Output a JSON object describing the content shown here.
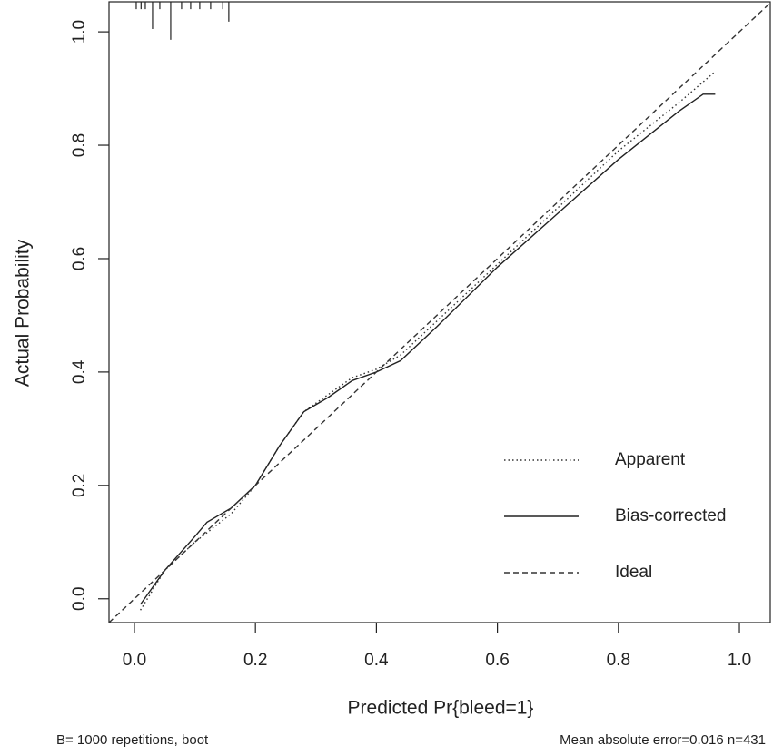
{
  "chart_data": {
    "type": "line",
    "xlabel": "Predicted Pr{bleed=1}",
    "ylabel": "Actual Probability",
    "footnote_left": "B= 1000 repetitions, boot",
    "footnote_right": "Mean absolute error=0.016 n=431",
    "xlim": [
      -0.042,
      1.051
    ],
    "ylim": [
      -0.042,
      1.053
    ],
    "xticks": [
      {
        "value": 0,
        "label": "0.0"
      },
      0.2,
      0.4,
      0.6,
      0.8,
      {
        "value": 1,
        "label": "1.0"
      }
    ],
    "yticks": [
      {
        "value": 0,
        "label": "0.0"
      },
      0.2,
      0.4,
      0.6,
      0.8,
      {
        "value": 1,
        "label": "1.0"
      }
    ],
    "legend": "right",
    "rug": {
      "x": [
        0.003,
        0.011,
        0.018,
        0.03,
        0.042,
        0.06,
        0.078,
        0.093,
        0.108,
        0.126,
        0.146,
        0.156
      ],
      "values": [
        0.013,
        0.013,
        0.013,
        0.048,
        0.013,
        0.067,
        0.013,
        0.013,
        0.013,
        0.013,
        0.013,
        0.035
      ]
    },
    "series": [
      {
        "name": "Apparent",
        "color": "#333",
        "dash": "1.5 3",
        "x": [
          0.01,
          0.05,
          0.1,
          0.16,
          0.2,
          0.24,
          0.28,
          0.36,
          0.4,
          0.44,
          0.5,
          0.6,
          0.7,
          0.8,
          0.9,
          0.96
        ],
        "values": [
          -0.02,
          0.05,
          0.1,
          0.15,
          0.2,
          0.27,
          0.33,
          0.39,
          0.405,
          0.43,
          0.49,
          0.59,
          0.69,
          0.79,
          0.875,
          0.93
        ]
      },
      {
        "name": "Bias-corrected",
        "color": "#222",
        "dash": "none",
        "x": [
          0.01,
          0.05,
          0.1,
          0.12,
          0.16,
          0.2,
          0.24,
          0.28,
          0.32,
          0.36,
          0.4,
          0.44,
          0.5,
          0.6,
          0.7,
          0.8,
          0.9,
          0.94,
          0.96
        ],
        "values": [
          -0.01,
          0.05,
          0.11,
          0.135,
          0.16,
          0.2,
          0.27,
          0.33,
          0.355,
          0.385,
          0.4,
          0.42,
          0.48,
          0.585,
          0.68,
          0.775,
          0.86,
          0.89,
          0.89
        ]
      },
      {
        "name": "Ideal",
        "color": "#333",
        "dash": "6 4",
        "x": [
          -0.042,
          1.051
        ],
        "values": [
          -0.042,
          1.051
        ]
      }
    ]
  }
}
